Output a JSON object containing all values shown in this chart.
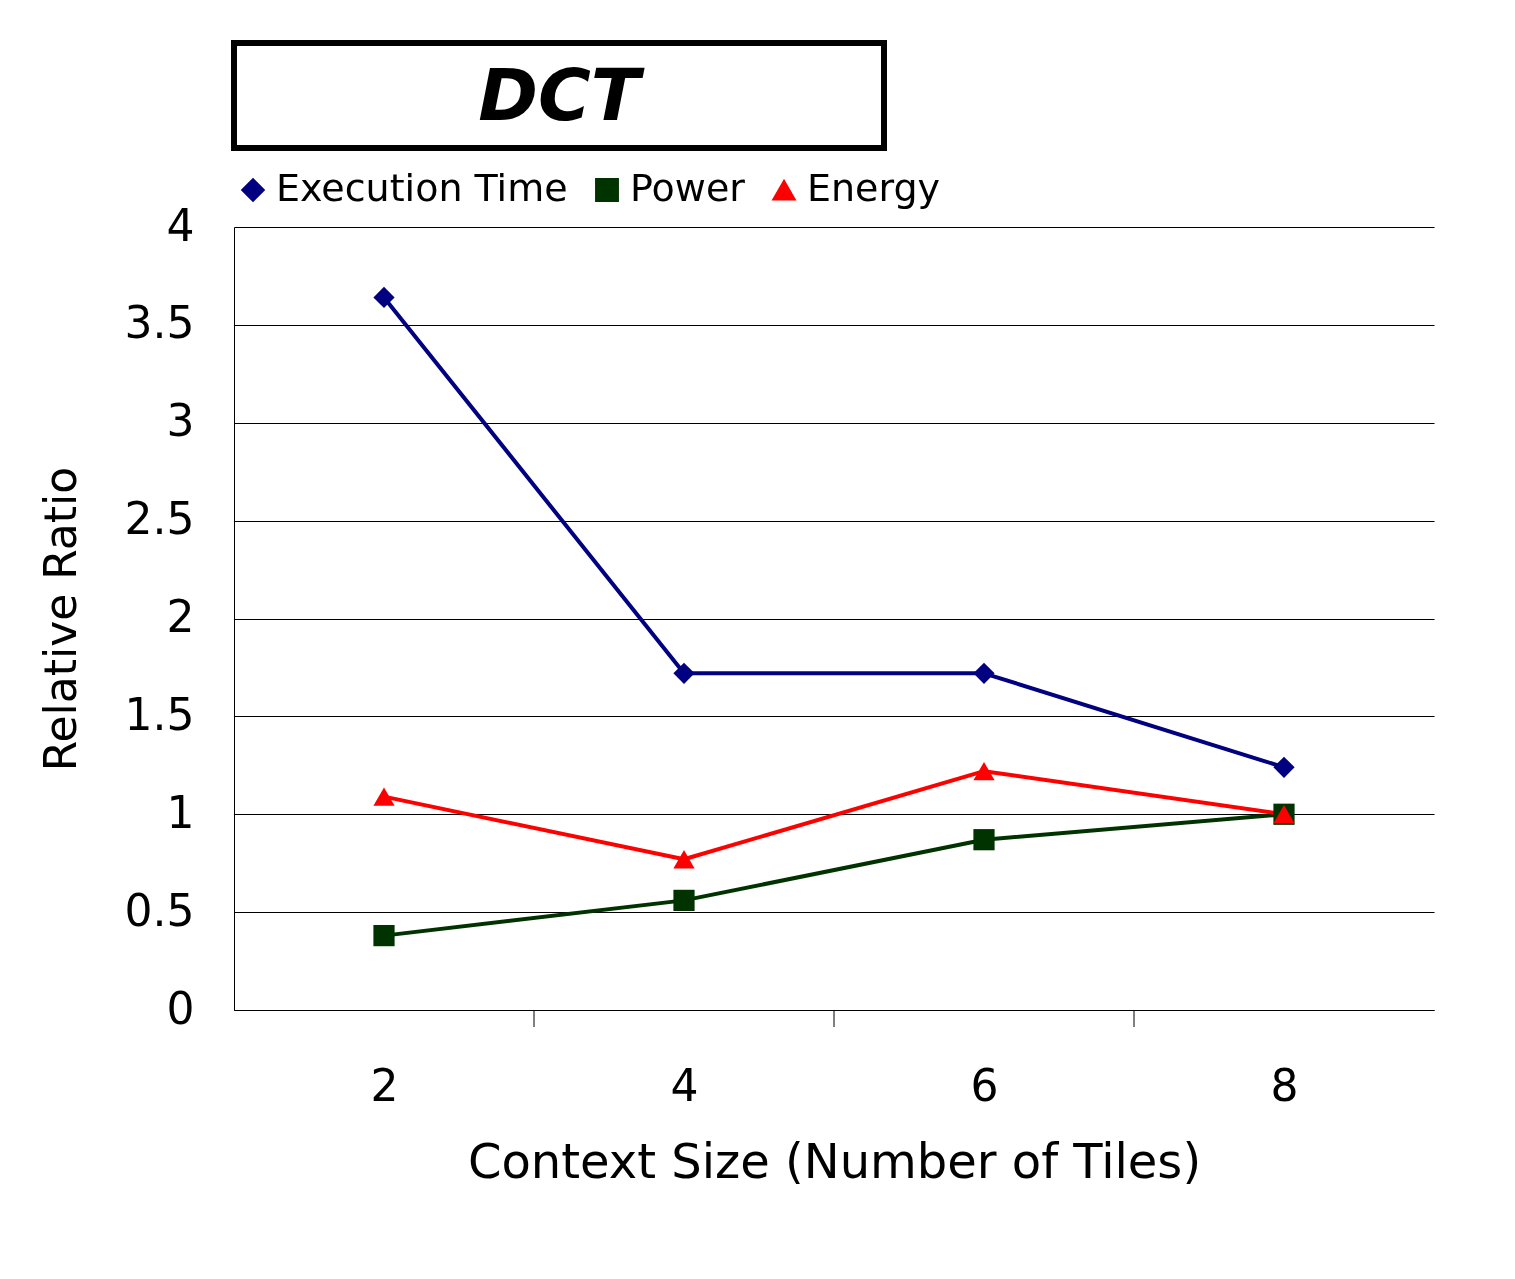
{
  "chart_data": {
    "type": "line",
    "title": "DCT",
    "xlabel": "Context Size (Number of Tiles)",
    "ylabel": "Relative Ratio",
    "categories": [
      "2",
      "4",
      "6",
      "8"
    ],
    "series": [
      {
        "name": "Execution Time",
        "color": "#000080",
        "marker": "diamond",
        "values": [
          3.64,
          1.72,
          1.72,
          1.24
        ]
      },
      {
        "name": "Power",
        "color": "#003300",
        "marker": "square",
        "values": [
          0.38,
          0.56,
          0.87,
          1.0
        ]
      },
      {
        "name": "Energy",
        "color": "#ff0000",
        "marker": "triangle",
        "values": [
          1.09,
          0.77,
          1.22,
          1.0
        ]
      }
    ],
    "ylim": [
      0,
      4
    ],
    "yticks": [
      0,
      0.5,
      1,
      1.5,
      2,
      2.5,
      3,
      3.5,
      4
    ],
    "grid": "y",
    "legend": "top",
    "line_style": "solid"
  }
}
